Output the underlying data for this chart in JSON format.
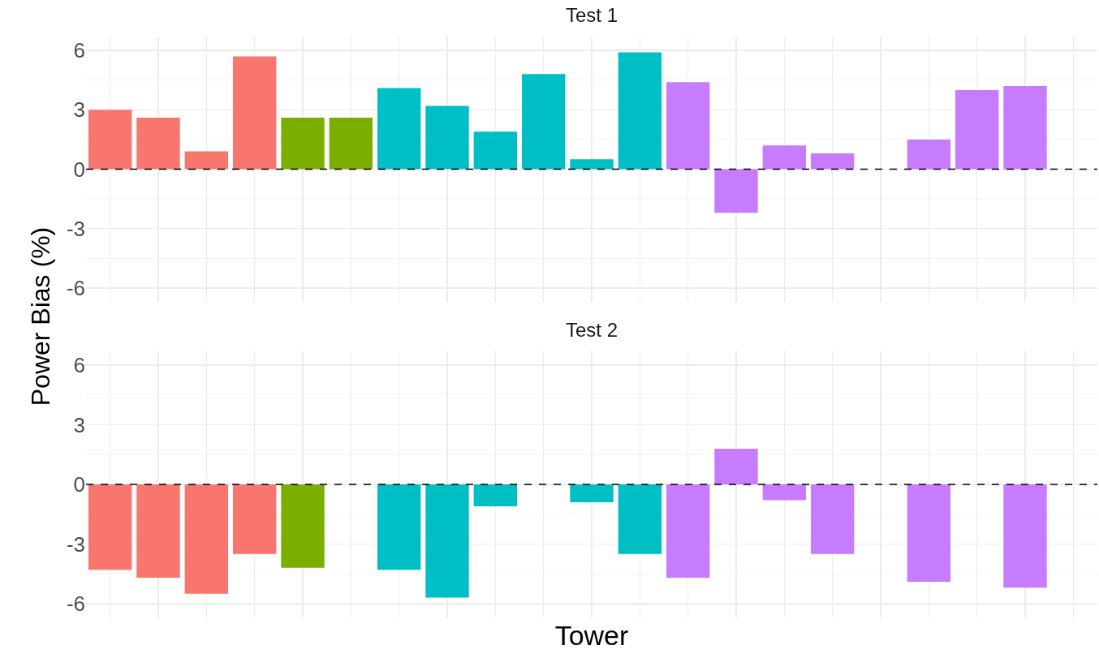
{
  "chart_data": [
    {
      "type": "bar",
      "title": "Test 1",
      "ylabel": "Power Bias (%)",
      "categories": [
        null,
        null,
        null,
        null,
        null,
        null,
        null,
        null,
        null,
        null,
        null,
        null,
        null,
        null,
        null,
        null,
        null,
        null,
        null,
        null,
        null
      ],
      "values": [
        3.0,
        2.6,
        0.9,
        5.7,
        2.6,
        2.6,
        4.1,
        3.2,
        1.9,
        4.8,
        0.5,
        5.9,
        4.4,
        -2.2,
        1.2,
        0.8,
        null,
        1.5,
        4.0,
        4.2,
        null
      ],
      "colors": [
        "#f8766d",
        "#f8766d",
        "#f8766d",
        "#f8766d",
        "#7cae00",
        "#7cae00",
        "#00bfc4",
        "#00bfc4",
        "#00bfc4",
        "#00bfc4",
        "#00bfc4",
        "#00bfc4",
        "#c77cff",
        "#c77cff",
        "#c77cff",
        "#c77cff",
        "#c77cff",
        "#c77cff",
        "#c77cff",
        "#c77cff",
        "#c77cff"
      ],
      "ylim": [
        -6.7,
        6.7
      ],
      "yticks": [
        -6,
        -3,
        0,
        3,
        6
      ],
      "grid": true,
      "tick_labels": "y",
      "ref_lines": [
        {
          "axis": "y",
          "value": 0,
          "line_style": "dashed",
          "color": "#000000"
        }
      ]
    },
    {
      "type": "bar",
      "title": "Test 2",
      "xlabel": "Tower",
      "categories": [
        null,
        null,
        null,
        null,
        null,
        null,
        null,
        null,
        null,
        null,
        null,
        null,
        null,
        null,
        null,
        null,
        null,
        null,
        null,
        null,
        null
      ],
      "values": [
        -4.3,
        -4.7,
        -5.5,
        -3.5,
        -4.2,
        null,
        -4.3,
        -5.7,
        -1.1,
        null,
        -0.9,
        -3.5,
        -4.7,
        1.8,
        -0.8,
        -3.5,
        null,
        -4.9,
        null,
        -5.2,
        null
      ],
      "colors": [
        "#f8766d",
        "#f8766d",
        "#f8766d",
        "#f8766d",
        "#7cae00",
        "#7cae00",
        "#00bfc4",
        "#00bfc4",
        "#00bfc4",
        "#00bfc4",
        "#00bfc4",
        "#00bfc4",
        "#c77cff",
        "#c77cff",
        "#c77cff",
        "#c77cff",
        "#c77cff",
        "#c77cff",
        "#c77cff",
        "#c77cff",
        "#c77cff"
      ],
      "ylim": [
        -6.7,
        6.7
      ],
      "yticks": [
        -6,
        -3,
        0,
        3,
        6
      ],
      "grid": true,
      "tick_labels": "y",
      "ref_lines": [
        {
          "axis": "y",
          "value": 0,
          "line_style": "dashed",
          "color": "#000000"
        }
      ]
    }
  ]
}
